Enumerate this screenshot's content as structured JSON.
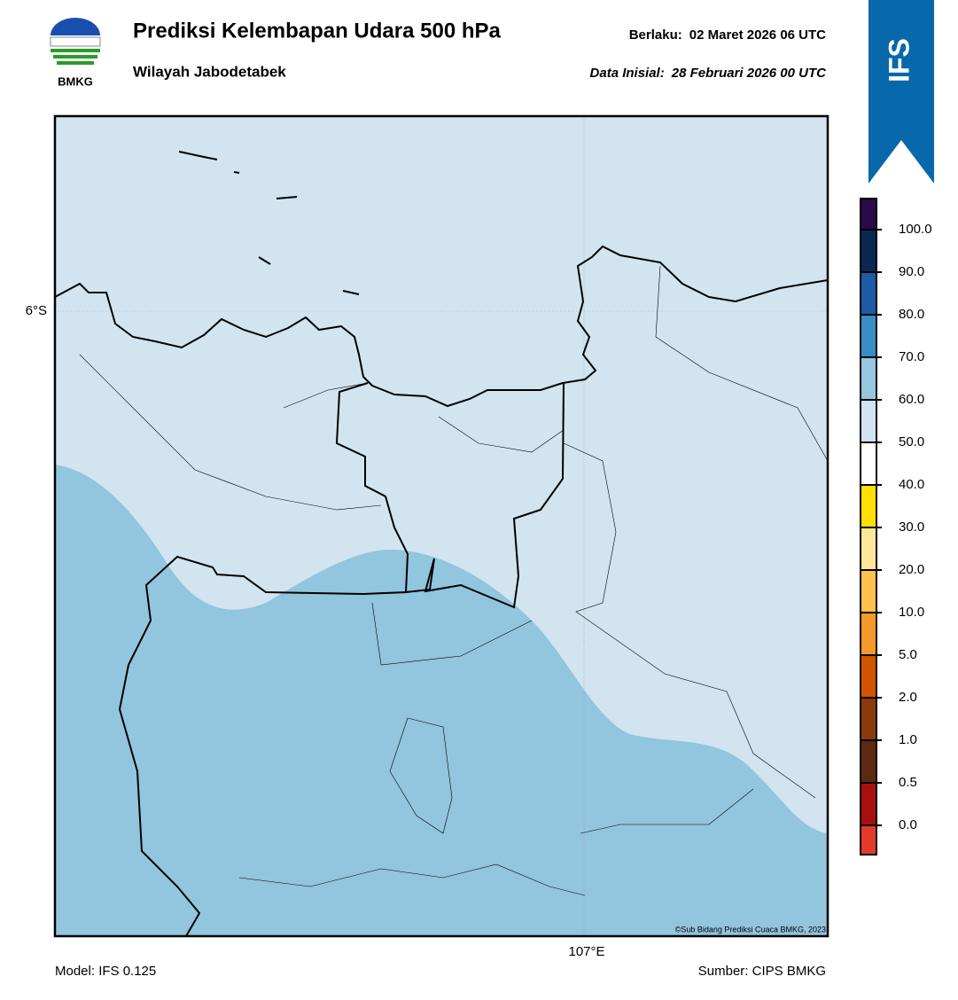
{
  "header": {
    "logo_text": "BMKG",
    "title": "Prediksi Kelembapan Udara 500 hPa",
    "subtitle": "Wilayah Jabodetabek",
    "valid_label": "Berlaku:",
    "valid_time": "02 Maret 2026 06 UTC",
    "init_label": "Data Inisial:",
    "init_time": "28 Februari 2026 00 UTC",
    "badge": "IFS"
  },
  "map": {
    "lat_label": "6°S",
    "lon_label": "107°E",
    "credit": "©Sub Bidang Prediksi Cuaca BMKG, 2023"
  },
  "colorbar": {
    "ticks": [
      {
        "value": 0,
        "label": "0.0"
      },
      {
        "value": 0.5,
        "label": "0.5"
      },
      {
        "value": 1,
        "label": "1.0"
      },
      {
        "value": 2,
        "label": "2.0"
      },
      {
        "value": 5,
        "label": "5.0"
      },
      {
        "value": 10,
        "label": "10.0"
      },
      {
        "value": 20,
        "label": "20.0"
      },
      {
        "value": 30,
        "label": "30.0"
      },
      {
        "value": 40,
        "label": "40.0"
      },
      {
        "value": 50,
        "label": "50.0"
      },
      {
        "value": 60,
        "label": "60.0"
      },
      {
        "value": 70,
        "label": "70.0"
      },
      {
        "value": 80,
        "label": "80.0"
      },
      {
        "value": 90,
        "label": "90.0"
      },
      {
        "value": 100,
        "label": "100.0"
      }
    ],
    "colors": [
      "#e23b2e",
      "#a81010",
      "#5c2a12",
      "#8b3a0f",
      "#d35400",
      "#f59a2a",
      "#ffc14d",
      "#ffe699",
      "#ffe000",
      "#ffffff",
      "#d1e4f0",
      "#97c6df",
      "#3a8cc4",
      "#1f5aa6",
      "#0a2850",
      "#2a0a4a"
    ]
  },
  "footer": {
    "model": "Model: IFS 0.125",
    "source": "Sumber: CIPS BMKG"
  }
}
